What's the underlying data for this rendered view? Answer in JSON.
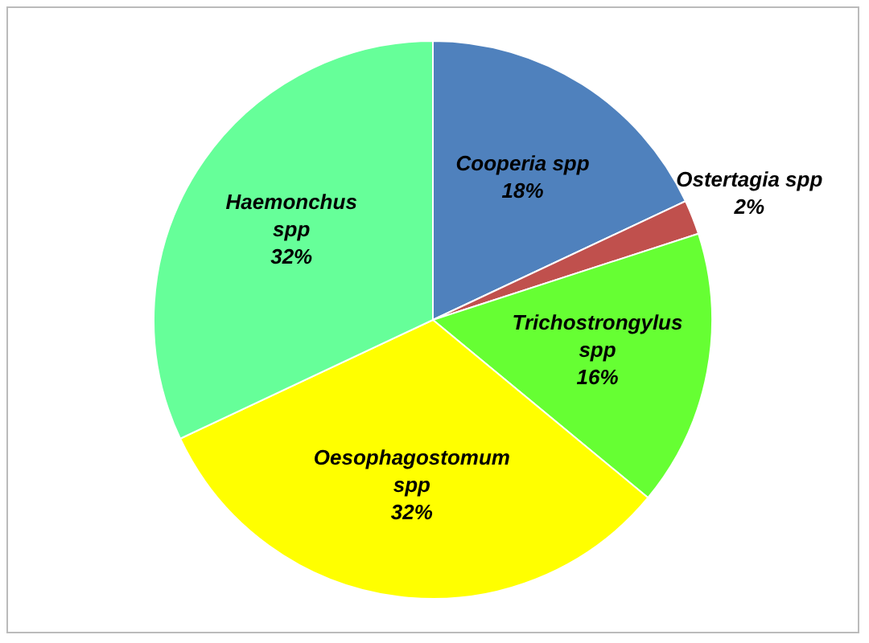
{
  "chart_data": {
    "type": "pie",
    "categories": [
      "Cooperia spp",
      "Ostertagia spp",
      "Trichostrongylus spp",
      "Oesophagostomum spp",
      "Haemonchus spp"
    ],
    "values": [
      18,
      2,
      16,
      32,
      32
    ],
    "colors": [
      "#4f81bd",
      "#c0504d",
      "#66ff33",
      "#ffff00",
      "#66ff99"
    ],
    "value_labels": [
      "18%",
      "2%",
      "16%",
      "32%",
      "32%"
    ],
    "legend": false
  }
}
